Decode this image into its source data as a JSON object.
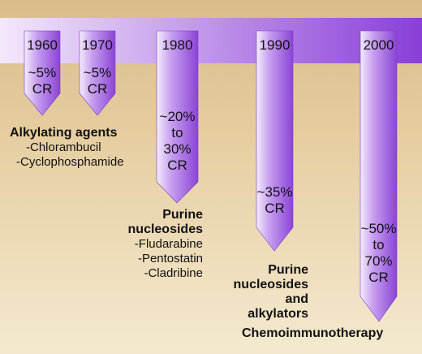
{
  "colors": {
    "background_top": "#d9bc8a",
    "background_bottom": "#f4e9cf",
    "band_light": "#f3e8fb",
    "band_dark": "#8a3fd8",
    "arrow_light": "#f4ecfb",
    "arrow_dark": "#8b44d6"
  },
  "eras": [
    {
      "year": "1960",
      "outcome": [
        "~5%",
        "CR"
      ]
    },
    {
      "year": "1970",
      "outcome": [
        "~5%",
        "CR"
      ]
    },
    {
      "year": "1980",
      "outcome": [
        "~20%",
        "to",
        "30%",
        "CR"
      ]
    },
    {
      "year": "1990",
      "outcome": [
        "~35%",
        "CR"
      ]
    },
    {
      "year": "2000",
      "outcome": [
        "~50%",
        "to",
        "70%",
        "CR"
      ]
    }
  ],
  "therapies": [
    {
      "title": "Alkylating agents",
      "items": [
        "-Chlorambucil",
        "-Cyclophosphamide"
      ]
    },
    {
      "title": "Purine nucleosides",
      "items": [
        "-Fludarabine",
        "-Pentostatin",
        "-Cladribine"
      ]
    },
    {
      "title": "Purine nucleosides and alkylators",
      "items": []
    },
    {
      "title": "Chemoimmunotherapy",
      "items": []
    }
  ]
}
